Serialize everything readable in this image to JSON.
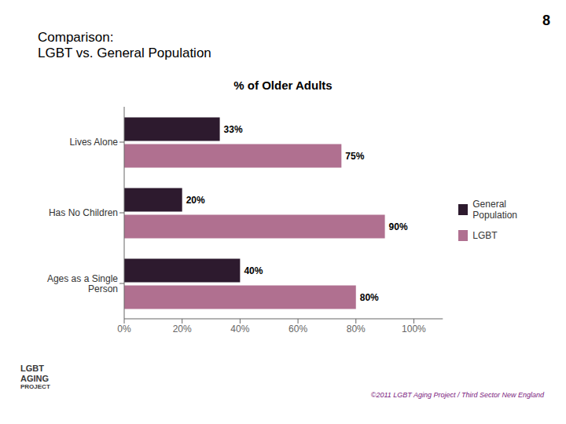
{
  "chart_data": {
    "type": "bar",
    "orientation": "horizontal",
    "title": "% of Older Adults",
    "annotations": [
      "Comparison:\nLGBT vs.  General Population",
      "8",
      "©2011 LGBT Aging Project / Third Sector New England",
      "LGBT",
      "AGING",
      "PROJECT"
    ],
    "categories": [
      "Lives Alone",
      "Has No Children",
      "Ages as a Single\nPerson"
    ],
    "series": [
      {
        "name": "General\nPopulation",
        "color": "#2d1a2e",
        "values": [
          33,
          20,
          40
        ],
        "value_labels": [
          "33%",
          "20%",
          "40%"
        ]
      },
      {
        "name": "LGBT",
        "color": "#b07090",
        "values": [
          75,
          90,
          80
        ],
        "value_labels": [
          "75%",
          "90%",
          "80%"
        ]
      }
    ],
    "xlim": [
      0,
      110
    ],
    "xticks": [
      {
        "value": 0,
        "label": "0%"
      },
      {
        "value": 20,
        "label": "20%"
      },
      {
        "value": 40,
        "label": "40%"
      },
      {
        "value": 60,
        "label": "60%"
      },
      {
        "value": 80,
        "label": "80%"
      },
      {
        "value": 100,
        "label": "100%"
      }
    ],
    "grid": false,
    "legend": "right",
    "data_labels": true
  }
}
